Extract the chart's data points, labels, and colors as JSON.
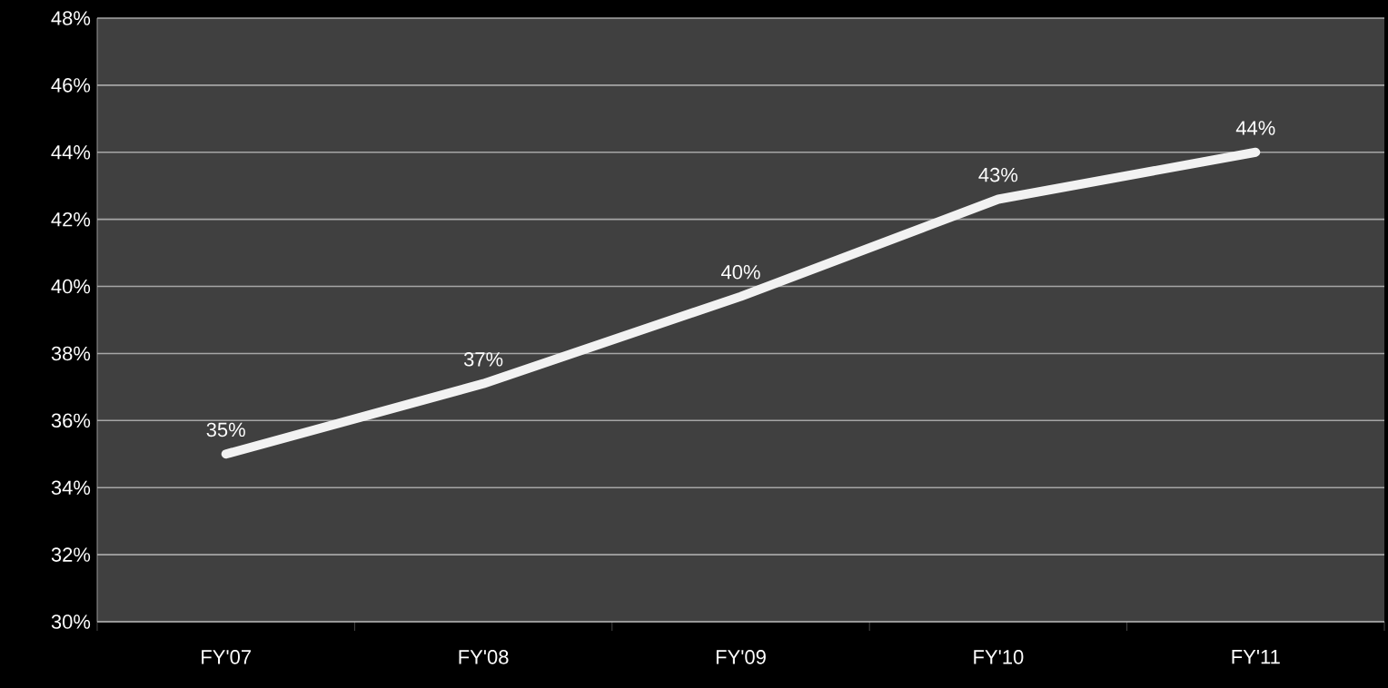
{
  "chart_data": {
    "type": "line",
    "categories": [
      "FY'07",
      "FY'08",
      "FY'09",
      "FY'10",
      "FY'11"
    ],
    "series": [
      {
        "color": "#f2f2f2",
        "values": [
          35.0,
          37.1,
          39.7,
          42.6,
          44.0
        ]
      }
    ],
    "value_labels": [
      "35%",
      "37%",
      "40%",
      "43%",
      "44%"
    ],
    "ylim": [
      30,
      48
    ],
    "yticks": [
      {
        "value": 30,
        "label": "30%"
      },
      {
        "value": 32,
        "label": "32%"
      },
      {
        "value": 34,
        "label": "34%"
      },
      {
        "value": 36,
        "label": "36%"
      },
      {
        "value": 38,
        "label": "38%"
      },
      {
        "value": 40,
        "label": "40%"
      },
      {
        "value": 42,
        "label": "42%"
      },
      {
        "value": 44,
        "label": "44%"
      },
      {
        "value": 46,
        "label": "46%"
      },
      {
        "value": 48,
        "label": "48%"
      }
    ],
    "grid": "y",
    "marker": "none",
    "line_style": "solid"
  }
}
